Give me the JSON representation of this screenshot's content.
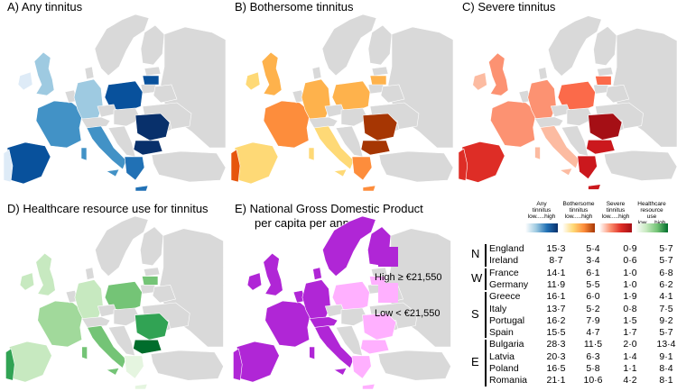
{
  "panels": [
    {
      "label": "A) Any tinnitus",
      "palette": "blue"
    },
    {
      "label": "B) Bothersome tinnitus",
      "palette": "orange"
    },
    {
      "label": "C) Severe tinnitus",
      "palette": "red"
    },
    {
      "label": "D) Healthcare resource use for tinnitus",
      "palette": "green"
    },
    {
      "label": "E) National Gross Domestic Product",
      "label2": "per capita per annum",
      "palette": "purple"
    }
  ],
  "gdp_legend": {
    "high_label": "High ≥ €21,550",
    "low_label": "Low < €21,550",
    "high_color": "#b026d6",
    "low_color": "#ffb0ff"
  },
  "colors": {
    "land_other": "#d9d9d9",
    "blue": [
      "#deebf7",
      "#9ecae1",
      "#4292c6",
      "#2171b5",
      "#08519c",
      "#08306b"
    ],
    "orange": [
      "#ffffb2",
      "#fed976",
      "#feb24c",
      "#fd8d3c",
      "#e6550d",
      "#a63603"
    ],
    "red": [
      "#fcbba1",
      "#fc9272",
      "#fb6a4a",
      "#de2d26",
      "#cb181d",
      "#a50f15"
    ],
    "green": [
      "#e5f5e0",
      "#c7e9c0",
      "#a1d99b",
      "#74c476",
      "#31a354",
      "#006d2c"
    ]
  },
  "table": {
    "headers": [
      {
        "line1": "Any",
        "line2": "tinnitus",
        "line3": "low.....high"
      },
      {
        "line1": "Bothersome",
        "line2": "tinnitus",
        "line3": "low.....high"
      },
      {
        "line1": "Severe",
        "line2": "tinnitus",
        "line3": "low.....high"
      },
      {
        "line1": "Healthcare",
        "line2": "resource use",
        "line3": "low.....high"
      }
    ],
    "groups": [
      {
        "code": "N",
        "rows": [
          {
            "country": "England",
            "values": [
              "15·3",
              "5·4",
              "0·9",
              "5·7"
            ]
          },
          {
            "country": "Ireland",
            "values": [
              "8·7",
              "3·4",
              "0·6",
              "5·7"
            ]
          }
        ]
      },
      {
        "code": "W",
        "rows": [
          {
            "country": "France",
            "values": [
              "14·1",
              "6·1",
              "1·0",
              "6·8"
            ]
          },
          {
            "country": "Germany",
            "values": [
              "11·9",
              "5·5",
              "1·0",
              "6·2"
            ]
          }
        ]
      },
      {
        "code": "S",
        "rows": [
          {
            "country": "Greece",
            "values": [
              "16·1",
              "6·0",
              "1·9",
              "4·1"
            ]
          },
          {
            "country": "Italy",
            "values": [
              "13·7",
              "5·2",
              "0·8",
              "7·5"
            ]
          },
          {
            "country": "Portugal",
            "values": [
              "16·2",
              "7·9",
              "1·5",
              "9·2"
            ]
          },
          {
            "country": "Spain",
            "values": [
              "15·5",
              "4·7",
              "1·7",
              "5·7"
            ]
          }
        ]
      },
      {
        "code": "E",
        "rows": [
          {
            "country": "Bulgaria",
            "values": [
              "28·3",
              "11·5",
              "2·0",
              "13·4"
            ]
          },
          {
            "country": "Latvia",
            "values": [
              "20·3",
              "6·3",
              "1·4",
              "9·1"
            ]
          },
          {
            "country": "Poland",
            "values": [
              "16·5",
              "5·8",
              "1·1",
              "8·4"
            ]
          },
          {
            "country": "Romania",
            "values": [
              "21·1",
              "10·6",
              "4·2",
              "8·1"
            ]
          }
        ]
      }
    ]
  }
}
